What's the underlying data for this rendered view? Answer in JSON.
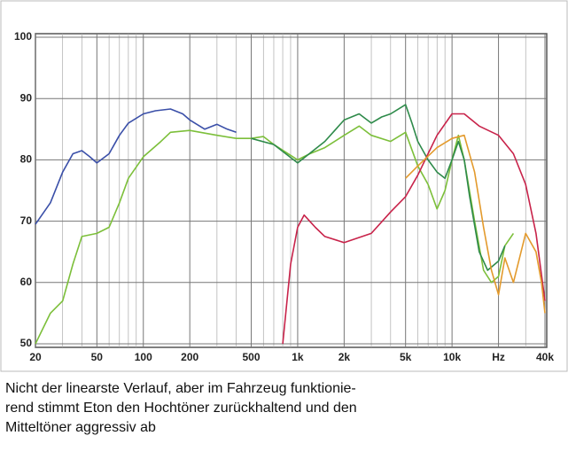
{
  "chart_data": {
    "type": "line",
    "xscale": "log",
    "xlim": [
      20,
      40000
    ],
    "ylim": [
      50,
      100
    ],
    "xticks": [
      20,
      50,
      100,
      200,
      500,
      {
        "value": 1000,
        "label": "1k"
      },
      {
        "value": 2000,
        "label": "2k"
      },
      {
        "value": 5000,
        "label": "5k"
      },
      {
        "value": 10000,
        "label": "10k"
      },
      {
        "value": 20000,
        "label": "Hz"
      },
      {
        "value": 40000,
        "label": "40k"
      }
    ],
    "xminorticks": [
      30,
      40,
      60,
      70,
      80,
      90,
      300,
      400,
      600,
      700,
      800,
      900,
      3000,
      4000,
      6000,
      7000,
      8000,
      9000,
      30000
    ],
    "yticks": [
      50,
      60,
      70,
      80,
      90,
      100
    ],
    "grid": true,
    "series": [
      {
        "color": "#3a4fa8",
        "x": [
          20,
          25,
          30,
          35,
          40,
          45,
          50,
          60,
          70,
          80,
          100,
          120,
          150,
          180,
          200,
          250,
          300,
          350,
          400
        ],
        "values": [
          69.5,
          73,
          78,
          81,
          81.5,
          80.5,
          79.5,
          81,
          84,
          86,
          87.5,
          88,
          88.3,
          87.5,
          86.5,
          85,
          85.8,
          85,
          84.5
        ]
      },
      {
        "color": "#7cbf3a",
        "x": [
          20,
          25,
          30,
          35,
          40,
          50,
          60,
          70,
          80,
          100,
          130,
          150,
          200,
          300,
          400,
          500,
          600,
          700,
          1000,
          1200,
          1500,
          2000,
          2500,
          3000,
          4000,
          5000,
          6000,
          7000,
          8000,
          9000,
          10000,
          11000,
          12000,
          14000,
          16000,
          18000,
          20000,
          22000,
          25000
        ],
        "values": [
          50,
          55,
          57,
          63,
          67.5,
          68,
          69,
          73,
          77,
          80.5,
          83,
          84.5,
          84.8,
          84,
          83.5,
          83.5,
          83.8,
          82.5,
          80,
          81,
          82,
          84,
          85.5,
          84,
          83,
          84.5,
          79,
          76,
          72,
          75,
          80,
          84,
          80,
          70,
          62,
          60,
          61,
          66,
          68
        ]
      },
      {
        "color": "#2e8a4a",
        "x": [
          500,
          700,
          1000,
          1500,
          2000,
          2500,
          3000,
          3500,
          4000,
          5000,
          5500,
          6000,
          7000,
          8000,
          9000,
          10000,
          11000,
          12000,
          13000,
          15000,
          17000,
          20000,
          22000
        ],
        "values": [
          83.5,
          82.5,
          79.5,
          83,
          86.5,
          87.5,
          86,
          87,
          87.5,
          89,
          86,
          83,
          80,
          78,
          77,
          80,
          83,
          80,
          74,
          65,
          62,
          63.5,
          66
        ]
      },
      {
        "color": "#c8234a",
        "x": [
          800,
          900,
          1000,
          1100,
          1300,
          1500,
          2000,
          3000,
          4000,
          5000,
          6000,
          7000,
          8000,
          10000,
          12000,
          15000,
          20000,
          25000,
          30000,
          35000,
          40000
        ],
        "values": [
          50,
          63,
          69,
          71,
          69,
          67.5,
          66.5,
          68,
          71.5,
          74,
          77.5,
          81,
          84,
          87.5,
          87.5,
          85.5,
          84,
          81,
          76,
          68,
          57
        ]
      },
      {
        "color": "#e39a2c",
        "x": [
          5000,
          6000,
          8000,
          10000,
          12000,
          14000,
          16000,
          18000,
          20000,
          22000,
          25000,
          30000,
          35000,
          38000,
          40000
        ],
        "values": [
          77,
          79,
          82,
          83.5,
          84,
          78,
          69,
          62,
          58,
          64,
          60,
          68,
          65,
          60,
          55
        ]
      }
    ]
  },
  "caption": [
    "Nicht der linearste Verlauf, aber im Fahrzeug funktionie-",
    "rend stimmt Eton den Hochtöner zurückhaltend und den",
    "Mitteltöner aggressiv ab"
  ]
}
